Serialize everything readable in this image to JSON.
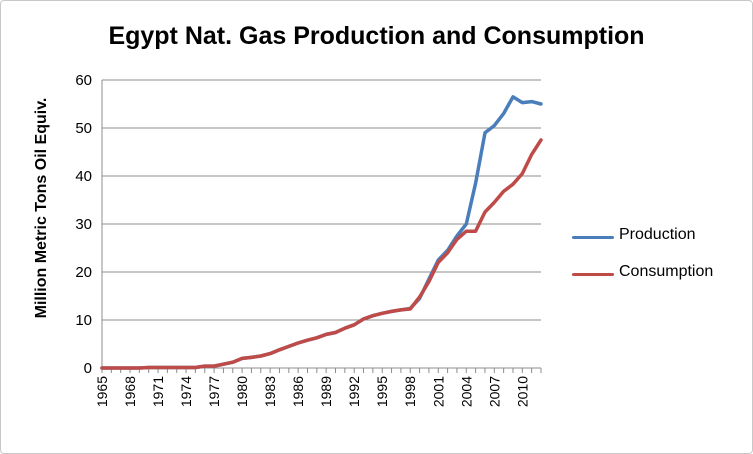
{
  "chart_data": {
    "type": "line",
    "title": "Egypt Nat. Gas Production and Consumption",
    "xlabel": "",
    "ylabel": "Million Metric Tons Oil Equiv.",
    "ylim": [
      0,
      60
    ],
    "yticks": [
      "0",
      "10",
      "20",
      "30",
      "40",
      "50",
      "60"
    ],
    "xticks": [
      "1965",
      "1968",
      "1971",
      "1974",
      "1977",
      "1980",
      "1983",
      "1986",
      "1989",
      "1992",
      "1995",
      "1998",
      "2001",
      "2004",
      "2007",
      "2010"
    ],
    "grid": "horizontal",
    "legend_position": "right",
    "x": [
      1965,
      1966,
      1967,
      1968,
      1969,
      1970,
      1971,
      1972,
      1973,
      1974,
      1975,
      1976,
      1977,
      1978,
      1979,
      1980,
      1981,
      1982,
      1983,
      1984,
      1985,
      1986,
      1987,
      1988,
      1989,
      1990,
      1991,
      1992,
      1993,
      1994,
      1995,
      1996,
      1997,
      1998,
      1999,
      2000,
      2001,
      2002,
      2003,
      2004,
      2005,
      2006,
      2007,
      2008,
      2009,
      2010,
      2011,
      2012
    ],
    "series": [
      {
        "name": "Production",
        "color": "#4a7ebb",
        "values": [
          0.0,
          0.0,
          0.0,
          0.0,
          0.0,
          0.1,
          0.1,
          0.1,
          0.1,
          0.1,
          0.1,
          0.4,
          0.4,
          0.8,
          1.2,
          2.0,
          2.2,
          2.5,
          3.0,
          3.8,
          4.5,
          5.2,
          5.8,
          6.3,
          7.0,
          7.4,
          8.3,
          9.0,
          10.2,
          10.9,
          11.4,
          11.8,
          12.1,
          12.4,
          14.5,
          18.5,
          22.5,
          24.5,
          27.5,
          30.0,
          38.5,
          49.0,
          50.5,
          53.0,
          56.5,
          55.3,
          55.5,
          55.0
        ]
      },
      {
        "name": "Consumption",
        "color": "#be4b48",
        "values": [
          0.0,
          0.0,
          0.0,
          0.0,
          0.0,
          0.1,
          0.1,
          0.1,
          0.1,
          0.1,
          0.1,
          0.4,
          0.4,
          0.8,
          1.2,
          2.0,
          2.2,
          2.5,
          3.0,
          3.8,
          4.5,
          5.2,
          5.8,
          6.3,
          7.0,
          7.4,
          8.3,
          9.0,
          10.2,
          10.9,
          11.4,
          11.8,
          12.1,
          12.3,
          14.8,
          18.0,
          22.0,
          24.0,
          26.8,
          28.5,
          28.5,
          32.5,
          34.5,
          36.8,
          38.3,
          40.5,
          44.5,
          47.5
        ]
      }
    ]
  }
}
